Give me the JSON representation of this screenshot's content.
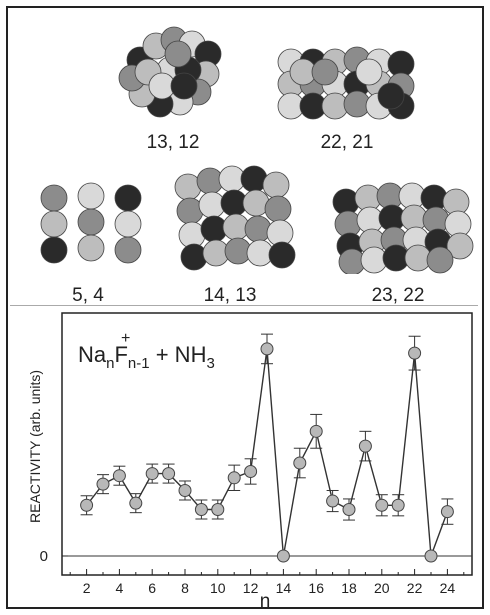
{
  "clusters": [
    {
      "label": "13, 12",
      "colors": [
        "#2a2a2a",
        "#d9d9d9",
        "#8c8c8c",
        "#bdbdbd"
      ]
    },
    {
      "label": "22, 21",
      "colors": [
        "#2a2a2a",
        "#d9d9d9",
        "#8c8c8c",
        "#bdbdbd"
      ]
    },
    {
      "label": "5, 4",
      "colors": [
        "#2a2a2a",
        "#d9d9d9",
        "#8c8c8c",
        "#bdbdbd"
      ]
    },
    {
      "label": "14, 13",
      "colors": [
        "#2a2a2a",
        "#d9d9d9",
        "#8c8c8c",
        "#bdbdbd"
      ]
    },
    {
      "label": "23, 22",
      "colors": [
        "#2a2a2a",
        "#d9d9d9",
        "#8c8c8c",
        "#bdbdbd"
      ]
    }
  ],
  "chart_data": {
    "type": "line",
    "title": {
      "base1": "Na",
      "sub1": "n",
      "base2": "F",
      "sub2": "n-1",
      "sup": "+",
      "rest": " +  NH",
      "sub3": "3"
    },
    "xlabel": "n",
    "ylabel": "REACTIVITY (arb. units)",
    "xlim": [
      0.5,
      25.5
    ],
    "ylim": [
      -0.18,
      2.3
    ],
    "xticks": [
      2,
      4,
      6,
      8,
      10,
      12,
      14,
      16,
      18,
      20,
      22,
      24
    ],
    "yticks": [
      {
        "value": 0,
        "label": "0"
      }
    ],
    "grid": false,
    "marker_color": "#b8b8b8",
    "line_color": "#333333",
    "points": [
      {
        "x": 2,
        "y": 0.48,
        "err": 0.09
      },
      {
        "x": 3,
        "y": 0.68,
        "err": 0.09
      },
      {
        "x": 4,
        "y": 0.76,
        "err": 0.09
      },
      {
        "x": 5,
        "y": 0.5,
        "err": 0.09
      },
      {
        "x": 6,
        "y": 0.78,
        "err": 0.09
      },
      {
        "x": 7,
        "y": 0.78,
        "err": 0.09
      },
      {
        "x": 8,
        "y": 0.62,
        "err": 0.09
      },
      {
        "x": 9,
        "y": 0.44,
        "err": 0.09
      },
      {
        "x": 10,
        "y": 0.44,
        "err": 0.09
      },
      {
        "x": 11,
        "y": 0.74,
        "err": 0.12
      },
      {
        "x": 12,
        "y": 0.8,
        "err": 0.12
      },
      {
        "x": 13,
        "y": 1.96,
        "err": 0.14
      },
      {
        "x": 14,
        "y": 0.0,
        "err": 0
      },
      {
        "x": 15,
        "y": 0.88,
        "err": 0.14
      },
      {
        "x": 16,
        "y": 1.18,
        "err": 0.16
      },
      {
        "x": 17,
        "y": 0.52,
        "err": 0.1
      },
      {
        "x": 18,
        "y": 0.44,
        "err": 0.1
      },
      {
        "x": 19,
        "y": 1.04,
        "err": 0.14
      },
      {
        "x": 20,
        "y": 0.48,
        "err": 0.1
      },
      {
        "x": 21,
        "y": 0.48,
        "err": 0.1
      },
      {
        "x": 22,
        "y": 1.92,
        "err": 0.16
      },
      {
        "x": 23,
        "y": 0.0,
        "err": 0
      },
      {
        "x": 24,
        "y": 0.42,
        "err": 0.12
      }
    ]
  }
}
